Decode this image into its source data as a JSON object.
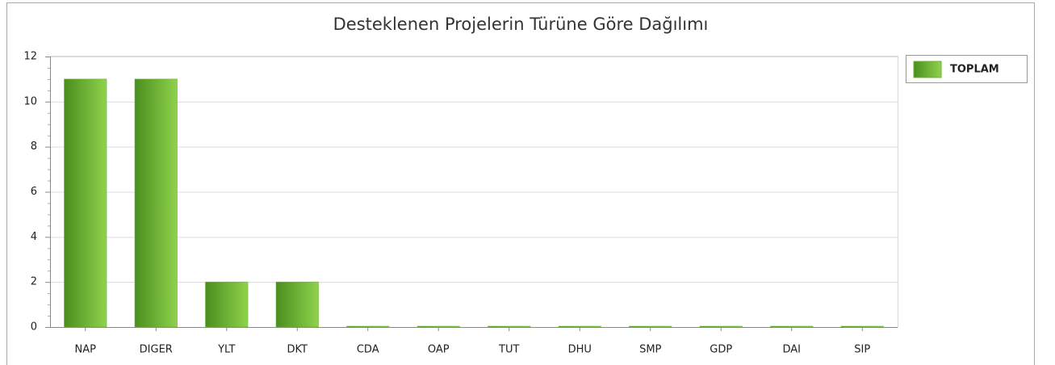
{
  "chart_data": {
    "type": "bar",
    "title": "Desteklenen Projelerin Türüne Göre Dağılımı",
    "categories": [
      "NAP",
      "DIGER",
      "YLT",
      "DKT",
      "CDA",
      "OAP",
      "TUT",
      "DHU",
      "SMP",
      "GDP",
      "DAI",
      "SIP"
    ],
    "series": [
      {
        "name": "TOPLAM",
        "color": "#6cb33a",
        "values": [
          11,
          11,
          2,
          2,
          0,
          0,
          0,
          0,
          0,
          0,
          0,
          0
        ]
      }
    ],
    "ylim": [
      0,
      12
    ],
    "yticks": [
      0,
      2,
      4,
      6,
      8,
      10,
      12
    ],
    "grid": true,
    "legend": "top-right"
  }
}
